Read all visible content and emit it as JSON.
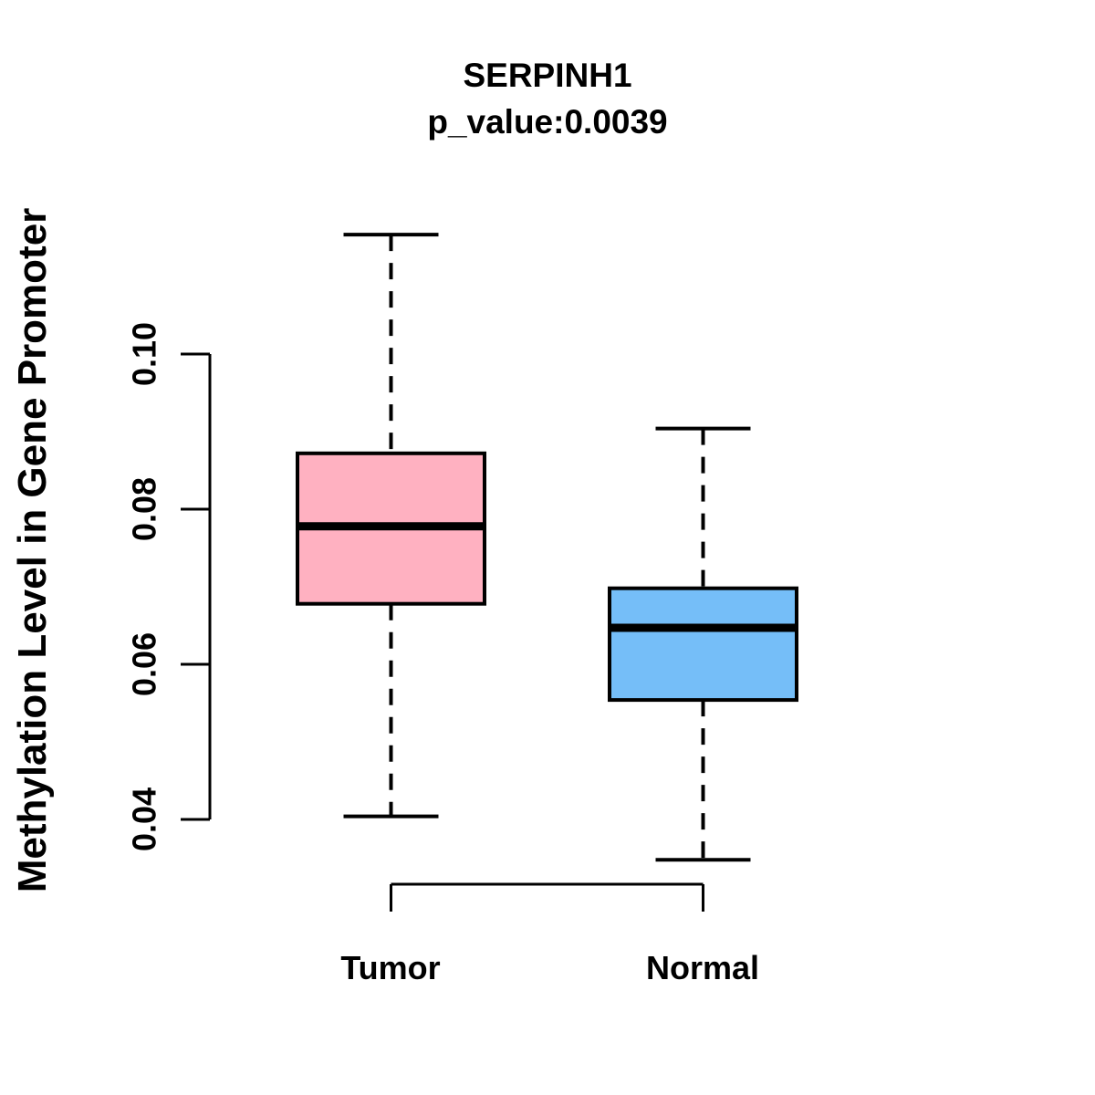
{
  "chart_data": {
    "type": "boxplot",
    "title": "SERPINH1",
    "subtitle": "p_value:0.0039",
    "ylabel": "Methylation Level in Gene Promoter",
    "xlabel": "",
    "categories": [
      "Tumor",
      "Normal"
    ],
    "background_color": "#FFFFFF",
    "line_color": "#000000",
    "whisker_style": "dashed",
    "legend": "none",
    "y_axis": {
      "ticks": [
        0.04,
        0.06,
        0.08,
        0.1
      ],
      "tick_labels": [
        "0.04",
        "0.06",
        "0.08",
        "0.10"
      ],
      "range_shown": [
        0.033,
        0.117
      ]
    },
    "series": [
      {
        "name": "Tumor",
        "color": "#FFB1C1",
        "whisker_low": 0.0404,
        "q1": 0.0678,
        "median": 0.0778,
        "q3": 0.0872,
        "whisker_high": 0.1154,
        "outliers": []
      },
      {
        "name": "Normal",
        "color": "#75BEF8",
        "whisker_low": 0.0348,
        "q1": 0.0554,
        "median": 0.0647,
        "q3": 0.0698,
        "whisker_high": 0.0904,
        "outliers": []
      }
    ]
  }
}
